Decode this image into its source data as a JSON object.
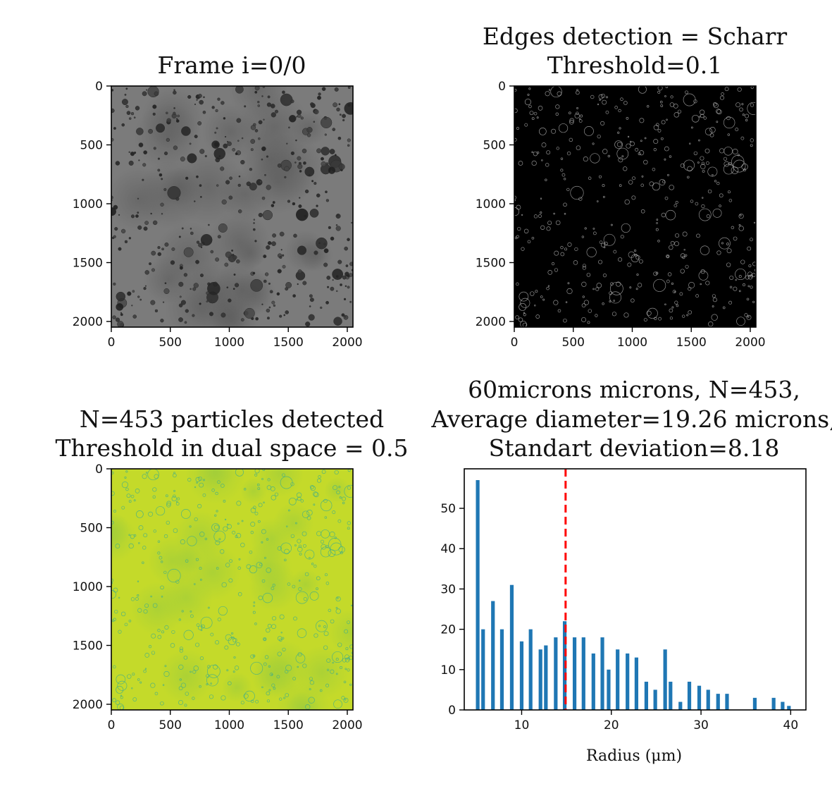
{
  "panels": {
    "frame": {
      "title": [
        "Frame i=0/0"
      ],
      "xticks": [
        "0",
        "500",
        "1000",
        "1500",
        "2000"
      ],
      "yticks": [
        "0",
        "500",
        "1000",
        "1500",
        "2000"
      ],
      "colormap": "gray",
      "background": "#7b7b7b"
    },
    "edges": {
      "title": [
        "Edges detection = Scharr",
        "Threshold=0.1"
      ],
      "xticks": [
        "0",
        "500",
        "1000",
        "1500",
        "2000"
      ],
      "yticks": [
        "0",
        "500",
        "1000",
        "1500",
        "2000"
      ],
      "colormap": "gray",
      "background": "#000000"
    },
    "dual": {
      "title": [
        "N=453 particles detected",
        "Threshold in dual space = 0.5"
      ],
      "xticks": [
        "0",
        "500",
        "1000",
        "1500",
        "2000"
      ],
      "yticks": [
        "0",
        "500",
        "1000",
        "1500",
        "2000"
      ],
      "colormap": "viridis",
      "background": "#c4da2a"
    }
  },
  "chart_data": {
    "type": "bar",
    "title": [
      "60microns microns, N=453,",
      "Average diameter=19.26 microns,",
      "Standart deviation=8.18"
    ],
    "xlabel": "Radius (μm)",
    "ylabel": "",
    "xlim": [
      3.6,
      41.7
    ],
    "ylim": [
      0,
      59.8
    ],
    "xticks": [
      10,
      20,
      30,
      40
    ],
    "yticks": [
      0,
      10,
      20,
      30,
      40,
      50
    ],
    "bar_color": "#1f77b4",
    "mean_line": {
      "x": 14.9,
      "color": "#ff0000",
      "style": "dashed"
    },
    "bars": [
      {
        "x": 5.1,
        "value": 57
      },
      {
        "x": 5.7,
        "value": 20
      },
      {
        "x": 6.8,
        "value": 27
      },
      {
        "x": 7.8,
        "value": 20
      },
      {
        "x": 8.9,
        "value": 31
      },
      {
        "x": 10.0,
        "value": 17
      },
      {
        "x": 11.0,
        "value": 20
      },
      {
        "x": 12.1,
        "value": 15
      },
      {
        "x": 12.7,
        "value": 16
      },
      {
        "x": 13.8,
        "value": 18
      },
      {
        "x": 14.8,
        "value": 22
      },
      {
        "x": 15.9,
        "value": 18
      },
      {
        "x": 16.9,
        "value": 18
      },
      {
        "x": 18.0,
        "value": 14
      },
      {
        "x": 19.0,
        "value": 18
      },
      {
        "x": 19.7,
        "value": 10
      },
      {
        "x": 20.7,
        "value": 15
      },
      {
        "x": 21.8,
        "value": 14
      },
      {
        "x": 22.8,
        "value": 13
      },
      {
        "x": 23.9,
        "value": 7
      },
      {
        "x": 24.9,
        "value": 5
      },
      {
        "x": 26.0,
        "value": 15
      },
      {
        "x": 26.6,
        "value": 7
      },
      {
        "x": 27.7,
        "value": 2
      },
      {
        "x": 28.7,
        "value": 7
      },
      {
        "x": 29.8,
        "value": 6
      },
      {
        "x": 30.8,
        "value": 5
      },
      {
        "x": 31.9,
        "value": 4
      },
      {
        "x": 32.9,
        "value": 4
      },
      {
        "x": 36.0,
        "value": 3
      },
      {
        "x": 38.1,
        "value": 3
      },
      {
        "x": 39.1,
        "value": 2
      },
      {
        "x": 39.8,
        "value": 1
      }
    ]
  }
}
